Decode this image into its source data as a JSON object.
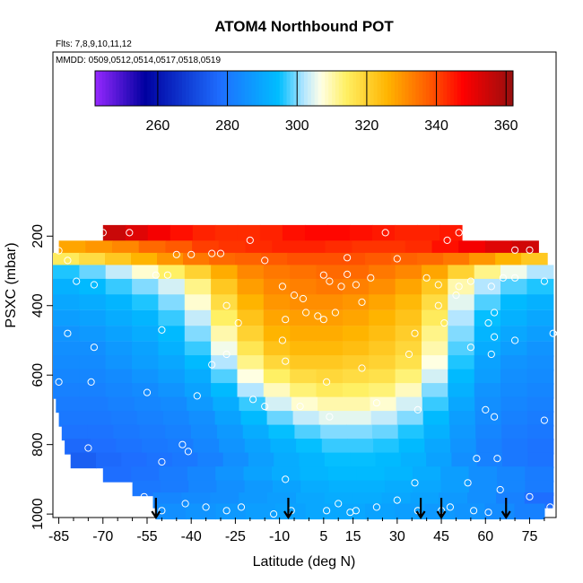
{
  "chart_data": {
    "type": "heatmap",
    "title": "ATOM4 Northbound POT",
    "subtitle_flights": "Flts: 7,8,9,10,11,12",
    "subtitle_dates": "MMDD: 0509,0512,0514,0517,0518,0519",
    "xlabel": "Latitude (deg N)",
    "ylabel": "PSXC (mbar)",
    "xlim": [
      -87,
      84
    ],
    "ylim": [
      1010,
      -330
    ],
    "x_tick_values": [
      -85,
      -70,
      -55,
      -40,
      -25,
      -10,
      5,
      15,
      30,
      45,
      60,
      75
    ],
    "x_tick_labels": [
      "-85",
      "-70",
      "-55",
      "-40",
      "-25",
      "-10",
      "5",
      "15",
      "30",
      "45",
      "60",
      "75"
    ],
    "y_tick_values": [
      200,
      400,
      600,
      800,
      1000
    ],
    "y_tick_labels": [
      "200",
      "400",
      "600",
      "800",
      "1000"
    ],
    "colorbar": {
      "range": [
        242,
        362
      ],
      "tick_values": [
        260,
        280,
        300,
        320,
        340,
        360
      ],
      "tick_labels": [
        "260",
        "280",
        "300",
        "320",
        "340",
        "360"
      ]
    },
    "levels": [
      {
        "p": 190,
        "x0": -70,
        "x1": 52,
        "vals": [
          355,
          352,
          349,
          346,
          344,
          343,
          343,
          344,
          346,
          347,
          347,
          346,
          345,
          344,
          344,
          345
        ]
      },
      {
        "p": 235,
        "x0": -85,
        "x1": 78,
        "vals": [
          328,
          330,
          332,
          336,
          338,
          341,
          342,
          343,
          344,
          344,
          343,
          342,
          342,
          343,
          346,
          349,
          352,
          354
        ]
      },
      {
        "p": 270,
        "x0": -87,
        "x1": 81,
        "vals": [
          315,
          318,
          322,
          326,
          330,
          334,
          336,
          337,
          338,
          339,
          339,
          339,
          338,
          337,
          336,
          334,
          330,
          326,
          322
        ]
      },
      {
        "p": 305,
        "x0": -87,
        "x1": 83,
        "vals": [
          296,
          299,
          303,
          308,
          314,
          320,
          327,
          332,
          334,
          335,
          336,
          336,
          334,
          332,
          328,
          320,
          312,
          306,
          302
        ]
      },
      {
        "p": 345,
        "x0": -87,
        "x1": 83,
        "vals": [
          292,
          294,
          297,
          300,
          304,
          312,
          322,
          329,
          332,
          333,
          334,
          333,
          331,
          328,
          322,
          310,
          302,
          298,
          296
        ]
      },
      {
        "p": 390,
        "x0": -87,
        "x1": 83,
        "vals": [
          290,
          291,
          293,
          296,
          300,
          308,
          318,
          326,
          330,
          331,
          331,
          330,
          328,
          325,
          318,
          305,
          298,
          294,
          292
        ]
      },
      {
        "p": 435,
        "x0": -87,
        "x1": 83,
        "vals": [
          288,
          289,
          291,
          293,
          297,
          303,
          314,
          323,
          328,
          329,
          329,
          328,
          326,
          323,
          315,
          302,
          295,
          292,
          290
        ]
      },
      {
        "p": 480,
        "x0": -87,
        "x1": 83,
        "vals": [
          286,
          287,
          289,
          291,
          294,
          300,
          310,
          320,
          326,
          327,
          327,
          326,
          324,
          321,
          312,
          300,
          293,
          290,
          288
        ]
      },
      {
        "p": 525,
        "x0": -87,
        "x1": 83,
        "vals": [
          285,
          285,
          287,
          289,
          292,
          297,
          306,
          316,
          323,
          325,
          325,
          324,
          322,
          319,
          310,
          298,
          291,
          288,
          286
        ]
      },
      {
        "p": 565,
        "x0": -87,
        "x1": 83,
        "vals": [
          284,
          284,
          286,
          288,
          290,
          294,
          302,
          312,
          319,
          322,
          322,
          321,
          320,
          317,
          307,
          296,
          289,
          286,
          285
        ]
      },
      {
        "p": 605,
        "x0": -87,
        "x1": 83,
        "vals": [
          283,
          283,
          284,
          286,
          288,
          291,
          298,
          307,
          314,
          318,
          319,
          318,
          317,
          313,
          304,
          294,
          288,
          285,
          284
        ]
      },
      {
        "p": 645,
        "x0": -87,
        "x1": 83,
        "vals": [
          282,
          282,
          283,
          284,
          286,
          289,
          294,
          302,
          309,
          313,
          315,
          314,
          313,
          309,
          300,
          292,
          286,
          284,
          283
        ]
      },
      {
        "p": 685,
        "x0": -86,
        "x1": 83,
        "vals": [
          281,
          281,
          282,
          283,
          284,
          287,
          291,
          297,
          304,
          308,
          310,
          310,
          308,
          304,
          297,
          290,
          285,
          283,
          282
        ]
      },
      {
        "p": 725,
        "x0": -85,
        "x1": 83,
        "vals": [
          280,
          280,
          281,
          282,
          283,
          285,
          289,
          294,
          299,
          303,
          305,
          305,
          303,
          300,
          294,
          288,
          284,
          282,
          281
        ]
      },
      {
        "p": 765,
        "x0": -84,
        "x1": 83,
        "vals": [
          279,
          279,
          280,
          281,
          282,
          284,
          287,
          291,
          295,
          298,
          300,
          300,
          299,
          296,
          292,
          287,
          283,
          281,
          280
        ]
      },
      {
        "p": 805,
        "x0": -83,
        "x1": 83,
        "vals": [
          277,
          278,
          279,
          280,
          281,
          283,
          286,
          289,
          292,
          295,
          297,
          297,
          296,
          294,
          290,
          286,
          282,
          280,
          279
        ]
      },
      {
        "p": 845,
        "x0": -81,
        "x1": 83,
        "vals": [
          275,
          277,
          278,
          279,
          280,
          282,
          285,
          288,
          291,
          293,
          295,
          295,
          294,
          292,
          289,
          285,
          282,
          280,
          279
        ]
      },
      {
        "p": 885,
        "x0": -70,
        "x1": 83,
        "vals": [
          278,
          279,
          281,
          283,
          286,
          289,
          291,
          293,
          294,
          294,
          293,
          291,
          288,
          285,
          283,
          281
        ]
      },
      {
        "p": 925,
        "x0": -60,
        "x1": 83,
        "vals": [
          280,
          281,
          283,
          285,
          287,
          289,
          291,
          292,
          292,
          291,
          290,
          288,
          285,
          283,
          281
        ]
      },
      {
        "p": 960,
        "x0": -53,
        "x1": 83,
        "vals": [
          283,
          284,
          285,
          287,
          288,
          290,
          291,
          291,
          290,
          289,
          287,
          285,
          282,
          278
        ]
      },
      {
        "p": 992,
        "x0": -52,
        "x1": 80,
        "vals": [
          285,
          286,
          287,
          288,
          289,
          290,
          290,
          289,
          288,
          287,
          286,
          284,
          282
        ]
      }
    ],
    "band_half_height_mbar": 22,
    "observations": [
      [
        -70,
        190
      ],
      [
        -61,
        190
      ],
      [
        -20,
        212
      ],
      [
        26,
        190
      ],
      [
        47,
        212
      ],
      [
        51,
        190
      ],
      [
        -85,
        242
      ],
      [
        -45,
        253
      ],
      [
        -40,
        253
      ],
      [
        -33,
        250
      ],
      [
        -30,
        250
      ],
      [
        -15,
        270
      ],
      [
        13,
        262
      ],
      [
        70,
        240
      ],
      [
        75,
        240
      ],
      [
        -82,
        270
      ],
      [
        -79,
        330
      ],
      [
        -52,
        312
      ],
      [
        -48,
        312
      ],
      [
        30,
        265
      ],
      [
        5,
        312
      ],
      [
        7,
        330
      ],
      [
        11,
        345
      ],
      [
        13,
        310
      ],
      [
        16,
        340
      ],
      [
        21,
        320
      ],
      [
        40,
        320
      ],
      [
        44,
        340
      ],
      [
        51,
        345
      ],
      [
        55,
        330
      ],
      [
        66,
        320
      ],
      [
        70,
        320
      ],
      [
        80,
        330
      ],
      [
        62,
        345
      ],
      [
        -9,
        345
      ],
      [
        -5,
        370
      ],
      [
        -2,
        380
      ],
      [
        -1,
        420
      ],
      [
        3,
        430
      ],
      [
        18,
        390
      ],
      [
        44,
        400
      ],
      [
        50,
        370
      ],
      [
        63,
        420
      ],
      [
        61,
        450
      ],
      [
        -28,
        400
      ],
      [
        -73,
        340
      ],
      [
        -24,
        450
      ],
      [
        -8,
        440
      ],
      [
        5,
        440
      ],
      [
        9,
        420
      ],
      [
        46,
        450
      ],
      [
        83,
        480
      ],
      [
        -82,
        480
      ],
      [
        -50,
        470
      ],
      [
        -9,
        500
      ],
      [
        36,
        480
      ],
      [
        63,
        490
      ],
      [
        70,
        500
      ],
      [
        55,
        520
      ],
      [
        -73,
        520
      ],
      [
        -28,
        540
      ],
      [
        -8,
        560
      ],
      [
        18,
        580
      ],
      [
        34,
        540
      ],
      [
        62,
        540
      ],
      [
        -33,
        570
      ],
      [
        6,
        620
      ],
      [
        -85,
        620
      ],
      [
        -74,
        620
      ],
      [
        -55,
        650
      ],
      [
        -38,
        660
      ],
      [
        -19,
        670
      ],
      [
        -15,
        690
      ],
      [
        -3,
        690
      ],
      [
        7,
        720
      ],
      [
        23,
        680
      ],
      [
        37,
        700
      ],
      [
        60,
        700
      ],
      [
        63,
        720
      ],
      [
        80,
        730
      ],
      [
        -75,
        810
      ],
      [
        -41,
        820
      ],
      [
        -43,
        800
      ],
      [
        64,
        840
      ],
      [
        57,
        840
      ],
      [
        -50,
        850
      ],
      [
        -8,
        900
      ],
      [
        30,
        960
      ],
      [
        36,
        910
      ],
      [
        54,
        910
      ],
      [
        65,
        930
      ],
      [
        -56,
        950
      ],
      [
        -42,
        970
      ],
      [
        -35,
        980
      ],
      [
        -23,
        980
      ],
      [
        -28,
        990
      ],
      [
        -6,
        990
      ],
      [
        -12,
        1000
      ],
      [
        6,
        990
      ],
      [
        10,
        970
      ],
      [
        14,
        995
      ],
      [
        16,
        990
      ],
      [
        23,
        980
      ],
      [
        37,
        990
      ],
      [
        45,
        990
      ],
      [
        48,
        980
      ],
      [
        56,
        990
      ],
      [
        61,
        995
      ],
      [
        75,
        950
      ],
      [
        82,
        980
      ],
      [
        -50,
        990
      ]
    ],
    "flight_markers_lat": [
      -52,
      -7,
      38,
      45,
      67
    ]
  }
}
